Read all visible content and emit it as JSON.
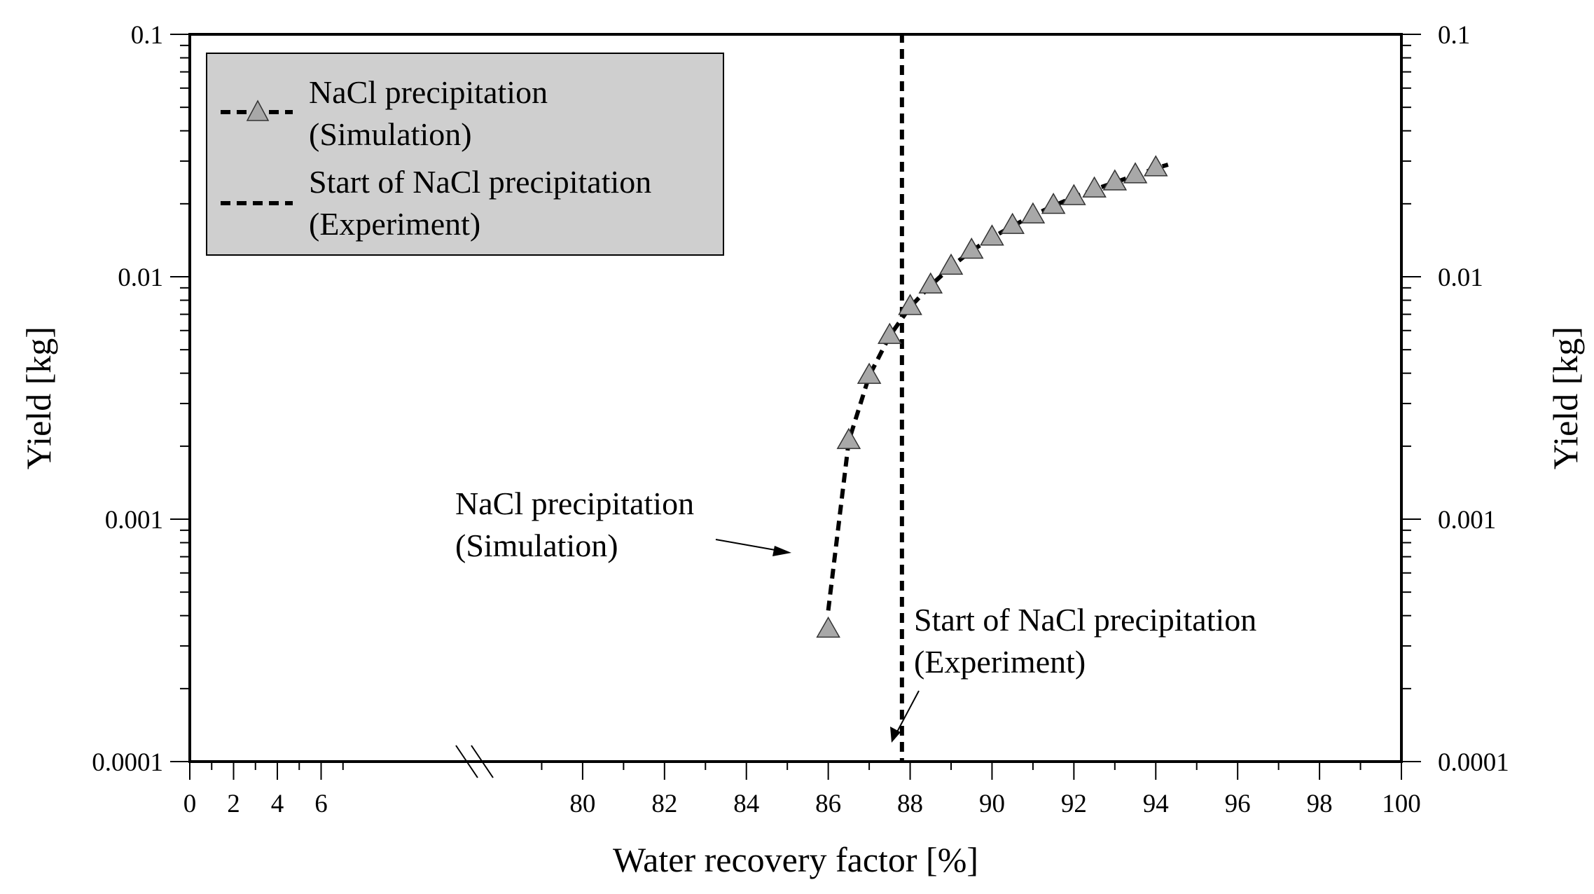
{
  "chart_data": {
    "type": "line",
    "scale_y": "log",
    "xlabel": "Water recovery factor [%]",
    "ylabel": "Yield [kg]",
    "ylabel_right": "Yield [kg]",
    "x_break": {
      "left_range": [
        0,
        7
      ],
      "right_range": [
        78,
        100
      ]
    },
    "xlim": [
      0,
      100
    ],
    "ylim": [
      0.0001,
      0.1
    ],
    "x_ticks": [
      "0",
      "2",
      "4",
      "6",
      "80",
      "82",
      "84",
      "86",
      "88",
      "90",
      "92",
      "94",
      "96",
      "98",
      "100"
    ],
    "x_tick_values": [
      0,
      2,
      4,
      6,
      80,
      82,
      84,
      86,
      88,
      90,
      92,
      94,
      96,
      98,
      100
    ],
    "y_ticks": [
      "0.0001",
      "0.001",
      "0.01",
      "0.1"
    ],
    "y_tick_values": [
      0.0001,
      0.001,
      0.01,
      0.1
    ],
    "grid": false,
    "legend_position": "top-left",
    "legend": [
      {
        "line1": "NaCl precipitation",
        "line2": "(Simulation)",
        "marker": "triangle"
      },
      {
        "line1": "Start of NaCl precipitation",
        "line2": "(Experiment)",
        "marker": "none"
      }
    ],
    "series": [
      {
        "name": "NaCl precipitation (Simulation)",
        "style": "dashed",
        "marker": "triangle",
        "marker_color": "#a8a8a8",
        "x": [
          86.0,
          86.5,
          87.0,
          87.5,
          88.0,
          88.5,
          89.0,
          89.5,
          90.0,
          90.5,
          91.0,
          91.5,
          92.0,
          92.5,
          93.0,
          93.5,
          94.0
        ],
        "y": [
          0.00035,
          0.0021,
          0.0039,
          0.0057,
          0.0075,
          0.0092,
          0.011,
          0.0128,
          0.0145,
          0.0162,
          0.0179,
          0.0196,
          0.0213,
          0.0229,
          0.0245,
          0.0262,
          0.028
        ]
      },
      {
        "name": "Start of NaCl precipitation (Experiment)",
        "style": "dashed",
        "marker": "none",
        "x": [
          87.8,
          87.8
        ],
        "y": [
          0.0001,
          0.1
        ]
      }
    ],
    "annotations": [
      {
        "line1": "NaCl precipitation",
        "line2": "(Simulation)",
        "arrow_to": {
          "x": 86.0,
          "y": 0.0008
        }
      },
      {
        "line1": "Start of NaCl precipitation",
        "line2": "(Experiment)",
        "arrow_to": {
          "x": 88.0,
          "y": 0.00011
        }
      }
    ]
  }
}
